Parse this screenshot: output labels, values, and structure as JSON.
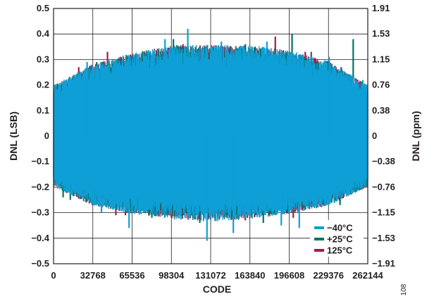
{
  "figure_id": "108",
  "chart_data": {
    "type": "line",
    "title": "",
    "xlabel": "CODE",
    "ylabel": "DNL (LSB)",
    "y2label": "DNL (ppm)",
    "xlim": [
      0,
      262144
    ],
    "ylim": [
      -0.5,
      0.5
    ],
    "x_ticks": [
      "0",
      "32768",
      "65536",
      "98304",
      "131072",
      "163840",
      "196608",
      "229376",
      "262144"
    ],
    "y_ticks": [
      "0.5",
      "0.4",
      "0.3",
      "0.2",
      "0.1",
      "0",
      "-0.1",
      "-0.2",
      "-0.3",
      "-0.4",
      "-0.5"
    ],
    "y2_ticks": [
      "1.91",
      "1.53",
      "1.15",
      "0.76",
      "0.38",
      "0",
      "-0.38",
      "-0.76",
      "-1.15",
      "-1.53",
      "-1.91"
    ],
    "grid": true,
    "legend_position": "bottom-right",
    "envelope": {
      "x": [
        0,
        32768,
        65536,
        98304,
        131072,
        163840,
        196608,
        229376,
        262144
      ],
      "upper": [
        0.19,
        0.27,
        0.31,
        0.34,
        0.34,
        0.34,
        0.32,
        0.28,
        0.19
      ],
      "lower": [
        -0.19,
        -0.26,
        -0.29,
        -0.31,
        -0.32,
        -0.31,
        -0.29,
        -0.26,
        -0.19
      ]
    },
    "series": [
      {
        "name": "125°C",
        "color": "#a6194b",
        "spikes": [
          {
            "x": 21000,
            "y": 0.27
          },
          {
            "x": 45000,
            "y": 0.33
          },
          {
            "x": 52000,
            "y": -0.31
          },
          {
            "x": 70000,
            "y": 0.32
          },
          {
            "x": 108000,
            "y": 0.36
          },
          {
            "x": 148000,
            "y": 0.35
          },
          {
            "x": 185000,
            "y": 0.39
          },
          {
            "x": 210000,
            "y": 0.33
          },
          {
            "x": 240000,
            "y": 0.27
          },
          {
            "x": 255000,
            "y": 0.21
          },
          {
            "x": 60000,
            "y": -0.31
          },
          {
            "x": 160000,
            "y": -0.33
          },
          {
            "x": 200000,
            "y": -0.32
          },
          {
            "x": 228000,
            "y": -0.26
          }
        ]
      },
      {
        "name": "+25°C",
        "color": "#00736b",
        "spikes": [
          {
            "x": 14000,
            "y": -0.25
          },
          {
            "x": 36000,
            "y": 0.29
          },
          {
            "x": 100000,
            "y": 0.38
          },
          {
            "x": 122000,
            "y": -0.34
          },
          {
            "x": 160000,
            "y": 0.36
          },
          {
            "x": 199000,
            "y": 0.4
          },
          {
            "x": 239000,
            "y": -0.27
          },
          {
            "x": 250000,
            "y": 0.38
          },
          {
            "x": 8000,
            "y": -0.24
          },
          {
            "x": 82000,
            "y": -0.32
          },
          {
            "x": 175000,
            "y": -0.34
          },
          {
            "x": 215000,
            "y": 0.33
          }
        ]
      },
      {
        "name": "−40°C",
        "color": "#0e9fd6",
        "spikes": [
          {
            "x": 5000,
            "y": 0.2
          },
          {
            "x": 28000,
            "y": 0.29
          },
          {
            "x": 63000,
            "y": -0.36
          },
          {
            "x": 93000,
            "y": 0.38
          },
          {
            "x": 112000,
            "y": 0.42
          },
          {
            "x": 128000,
            "y": -0.41
          },
          {
            "x": 150000,
            "y": -0.38
          },
          {
            "x": 178000,
            "y": 0.37
          },
          {
            "x": 205000,
            "y": -0.36
          },
          {
            "x": 230000,
            "y": 0.31
          },
          {
            "x": 258000,
            "y": 0.22
          },
          {
            "x": 40000,
            "y": -0.3
          },
          {
            "x": 140000,
            "y": 0.37
          },
          {
            "x": 190000,
            "y": -0.35
          }
        ]
      }
    ]
  }
}
